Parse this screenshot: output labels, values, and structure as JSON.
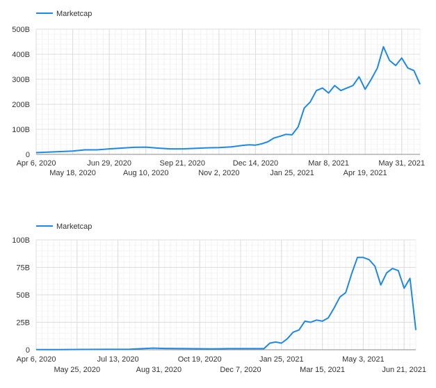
{
  "chart_data": [
    {
      "type": "line",
      "series": [
        {
          "name": "Marketcap",
          "color": "#1e88e5",
          "points": [
            [
              "2020-04-06",
              7
            ],
            [
              "2020-04-20",
              9
            ],
            [
              "2020-05-04",
              11
            ],
            [
              "2020-05-18",
              13
            ],
            [
              "2020-06-01",
              18
            ],
            [
              "2020-06-15",
              18
            ],
            [
              "2020-06-29",
              22
            ],
            [
              "2020-07-13",
              25
            ],
            [
              "2020-07-27",
              28
            ],
            [
              "2020-08-10",
              29
            ],
            [
              "2020-08-24",
              25
            ],
            [
              "2020-09-07",
              22
            ],
            [
              "2020-09-21",
              22
            ],
            [
              "2020-10-05",
              24
            ],
            [
              "2020-10-19",
              26
            ],
            [
              "2020-11-02",
              27
            ],
            [
              "2020-11-16",
              30
            ],
            [
              "2020-11-30",
              36
            ],
            [
              "2020-12-07",
              38
            ],
            [
              "2020-12-14",
              37
            ],
            [
              "2020-12-21",
              42
            ],
            [
              "2020-12-28",
              50
            ],
            [
              "2021-01-04",
              65
            ],
            [
              "2021-01-11",
              72
            ],
            [
              "2021-01-18",
              80
            ],
            [
              "2021-01-25",
              78
            ],
            [
              "2021-02-01",
              110
            ],
            [
              "2021-02-08",
              185
            ],
            [
              "2021-02-15",
              210
            ],
            [
              "2021-02-22",
              255
            ],
            [
              "2021-03-01",
              265
            ],
            [
              "2021-03-08",
              245
            ],
            [
              "2021-03-15",
              275
            ],
            [
              "2021-03-22",
              255
            ],
            [
              "2021-03-29",
              265
            ],
            [
              "2021-04-05",
              275
            ],
            [
              "2021-04-12",
              310
            ],
            [
              "2021-04-19",
              260
            ],
            [
              "2021-04-26",
              300
            ],
            [
              "2021-05-03",
              345
            ],
            [
              "2021-05-10",
              430
            ],
            [
              "2021-05-17",
              375
            ],
            [
              "2021-05-24",
              355
            ],
            [
              "2021-05-31",
              385
            ],
            [
              "2021-06-07",
              345
            ],
            [
              "2021-06-14",
              335
            ],
            [
              "2021-06-21",
              280
            ]
          ]
        }
      ],
      "x_ticks_top": [
        "Apr 6, 2020",
        "Jun 29, 2020",
        "Sep 21, 2020",
        "Dec 14, 2020",
        "Mar 8, 2021",
        "May 31, 2021"
      ],
      "x_ticks_bottom": [
        "May 18, 2020",
        "Aug 10, 2020",
        "Nov 2, 2020",
        "Jan 25, 2021",
        "Apr 19, 2021"
      ],
      "y_ticks": [
        "0",
        "100B",
        "200B",
        "300B",
        "400B",
        "500B"
      ],
      "ylim": [
        0,
        500
      ],
      "legend_position": "top-left",
      "grid": true
    },
    {
      "type": "line",
      "series": [
        {
          "name": "Marketcap",
          "color": "#1e88e5",
          "points": [
            [
              "2020-04-06",
              0.2
            ],
            [
              "2020-05-04",
              0.2
            ],
            [
              "2020-06-01",
              0.3
            ],
            [
              "2020-06-29",
              0.4
            ],
            [
              "2020-07-27",
              0.5
            ],
            [
              "2020-08-24",
              1.5
            ],
            [
              "2020-09-07",
              1.2
            ],
            [
              "2020-10-05",
              1.0
            ],
            [
              "2020-11-02",
              0.8
            ],
            [
              "2020-11-23",
              1.0
            ],
            [
              "2020-12-14",
              1.0
            ],
            [
              "2021-01-04",
              1.0
            ],
            [
              "2021-01-11",
              6
            ],
            [
              "2021-01-18",
              7
            ],
            [
              "2021-01-25",
              6
            ],
            [
              "2021-02-01",
              10
            ],
            [
              "2021-02-08",
              16
            ],
            [
              "2021-02-15",
              18
            ],
            [
              "2021-02-22",
              26
            ],
            [
              "2021-03-01",
              25
            ],
            [
              "2021-03-08",
              27
            ],
            [
              "2021-03-15",
              26
            ],
            [
              "2021-03-22",
              29
            ],
            [
              "2021-03-29",
              38
            ],
            [
              "2021-04-05",
              48
            ],
            [
              "2021-04-12",
              52
            ],
            [
              "2021-04-19",
              69
            ],
            [
              "2021-04-26",
              84
            ],
            [
              "2021-05-03",
              84
            ],
            [
              "2021-05-10",
              82
            ],
            [
              "2021-05-17",
              76
            ],
            [
              "2021-05-24",
              59
            ],
            [
              "2021-05-31",
              70
            ],
            [
              "2021-06-07",
              74
            ],
            [
              "2021-06-14",
              72
            ],
            [
              "2021-06-21",
              56
            ],
            [
              "2021-06-28",
              65
            ],
            [
              "2021-07-05",
              18
            ]
          ]
        }
      ],
      "x_ticks_top": [
        "Apr 6, 2020",
        "Jul 13, 2020",
        "Oct 19, 2020",
        "Jan 25, 2021",
        "May 3, 2021"
      ],
      "x_ticks_bottom": [
        "May 25, 2020",
        "Aug 31, 2020",
        "Dec 7, 2020",
        "Mar 15, 2021",
        "Jun 21, 2021"
      ],
      "y_ticks": [
        "0",
        "25B",
        "50B",
        "75B",
        "100B"
      ],
      "ylim": [
        0,
        100
      ],
      "legend_position": "top-left",
      "grid": true
    }
  ]
}
